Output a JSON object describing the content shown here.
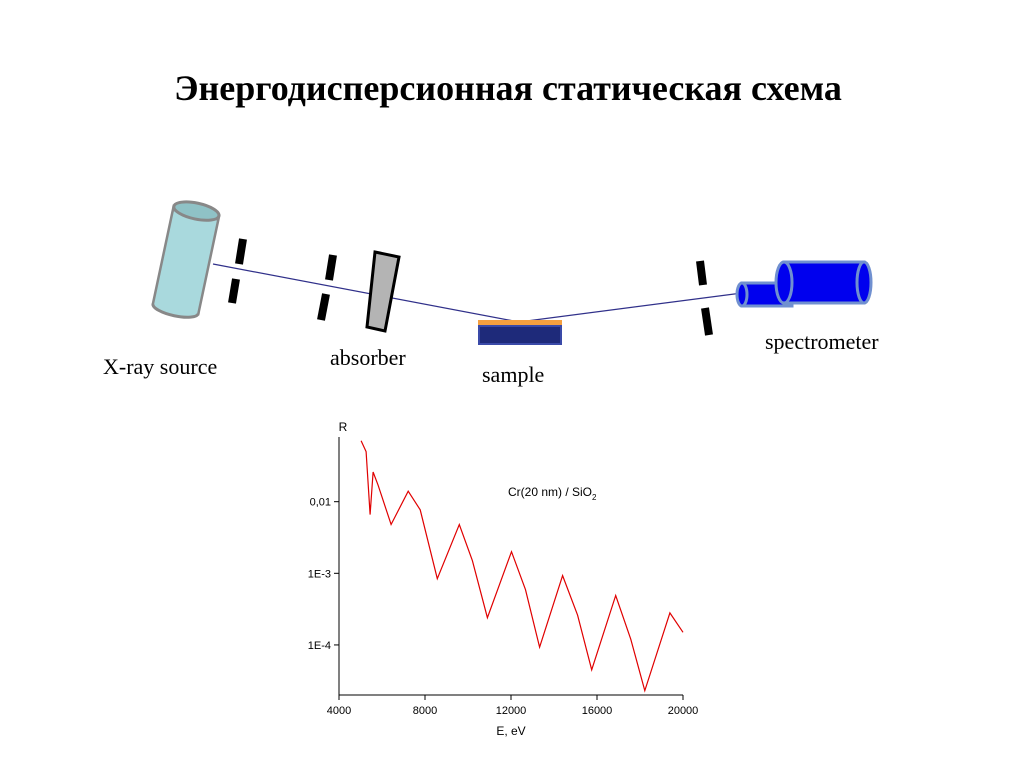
{
  "title": "Энергодисперсионная статическая схема",
  "diagram": {
    "labels": [
      "X-ray source",
      "absorber",
      "sample",
      "spectrometer"
    ]
  },
  "chart_data": {
    "type": "line",
    "y_label": "R",
    "x_label": "E, eV",
    "annotation": {
      "text": "Cr(20 nm) / SiO",
      "subscript": "2"
    },
    "log_y": true,
    "x": [
      5026,
      5259,
      5446,
      5586,
      5819,
      6425,
      7218,
      7778,
      8571,
      9597,
      10203,
      10903,
      12022,
      12675,
      13328,
      14400,
      15100,
      15753,
      16872,
      17572,
      18225,
      19391,
      20000
    ],
    "series": [
      {
        "color": "#e00000",
        "values": [
          0.071,
          0.05,
          0.0066,
          0.026,
          0.017,
          0.0048,
          0.014,
          0.0077,
          0.00084,
          0.0048,
          0.0015,
          0.00024,
          0.002,
          0.00059,
          9.3e-05,
          0.00093,
          0.00026,
          4.5e-05,
          0.00049,
          0.00012,
          2.3e-05,
          0.00028,
          0.00015
        ]
      }
    ],
    "xlim": [
      4000,
      20000
    ],
    "xticks": [
      4000,
      8000,
      12000,
      16000,
      20000
    ],
    "ylim": [
      2e-05,
      0.08
    ],
    "yticks": [
      {
        "value": 0.0001,
        "label": "1E-4"
      },
      {
        "value": 0.001,
        "label": "1E-3"
      },
      {
        "value": 0.01,
        "label": "0,01"
      }
    ]
  }
}
